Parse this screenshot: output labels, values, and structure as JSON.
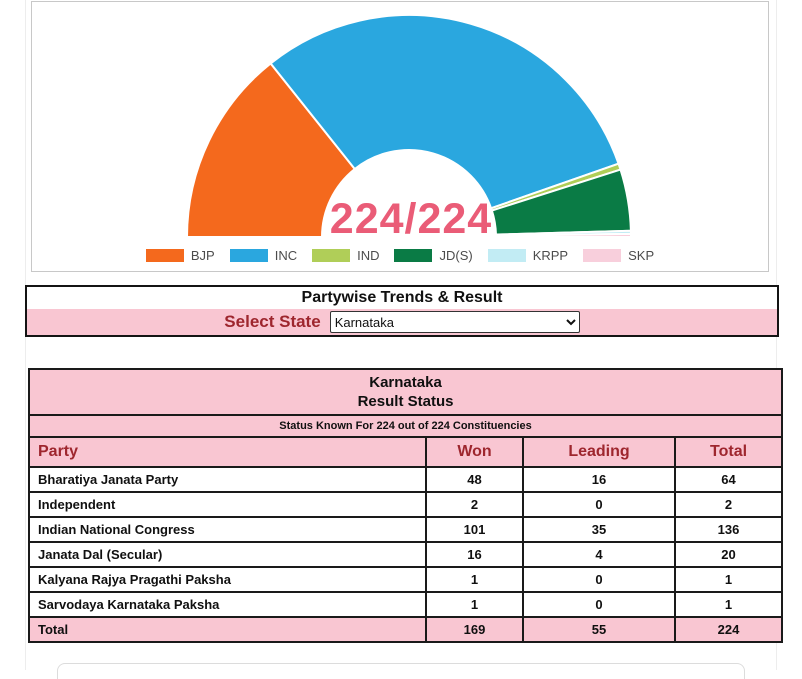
{
  "chart_data": {
    "type": "pie",
    "shape": "semicircle-donut",
    "total_label": "224/224",
    "legend_position": "bottom",
    "series": [
      {
        "name": "BJP",
        "value": 64,
        "color": "#F4691D"
      },
      {
        "name": "INC",
        "value": 136,
        "color": "#2AA7DF"
      },
      {
        "name": "IND",
        "value": 2,
        "color": "#B0CE58"
      },
      {
        "name": "JD(S)",
        "value": 20,
        "color": "#0A7B45"
      },
      {
        "name": "KRPP",
        "value": 1,
        "color": "#C2ECF4"
      },
      {
        "name": "SKP",
        "value": 1,
        "color": "#F8CFDC"
      }
    ]
  },
  "colors": {
    "pink_bg": "#F9C6D2",
    "maroon_text": "#9E262E",
    "center_label": "#EA5C77",
    "panel_border": "#141414"
  },
  "partywise": {
    "title": "Partywise Trends & Result",
    "select_state_label": "Select State",
    "selected_state": "Karnataka"
  },
  "result_table": {
    "title_line1": "Karnataka",
    "title_line2": "Result Status",
    "status_line": "Status Known For 224 out of 224 Constituencies",
    "columns": [
      "Party",
      "Won",
      "Leading",
      "Total"
    ],
    "rows": [
      {
        "party": "Bharatiya Janata Party",
        "won": "48",
        "leading": "16",
        "total": "64"
      },
      {
        "party": "Independent",
        "won": "2",
        "leading": "0",
        "total": "2"
      },
      {
        "party": "Indian National Congress",
        "won": "101",
        "leading": "35",
        "total": "136"
      },
      {
        "party": "Janata Dal (Secular)",
        "won": "16",
        "leading": "4",
        "total": "20"
      },
      {
        "party": "Kalyana Rajya Pragathi Paksha",
        "won": "1",
        "leading": "0",
        "total": "1"
      },
      {
        "party": "Sarvodaya Karnataka Paksha",
        "won": "1",
        "leading": "0",
        "total": "1"
      }
    ],
    "total_row": {
      "party": "Total",
      "won": "169",
      "leading": "55",
      "total": "224"
    }
  }
}
